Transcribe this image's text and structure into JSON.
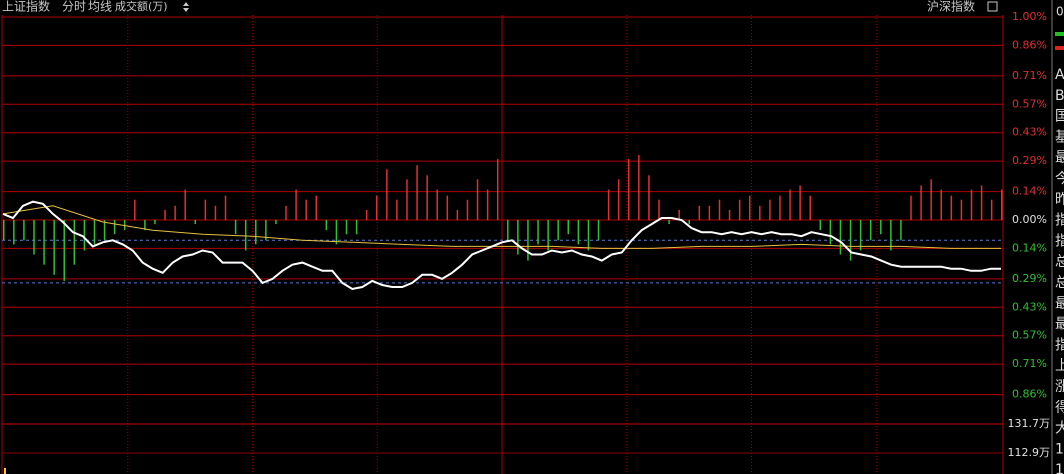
{
  "header": {
    "items": [
      "上证指数",
      "分时",
      "均线",
      "成交额(万)"
    ],
    "right": "沪深指数"
  },
  "side_panel": {
    "top": "0",
    "rows": [
      "A",
      "B",
      "国",
      "基",
      "最",
      "今",
      "昨",
      "指",
      "指",
      "总",
      "总",
      "最",
      "最",
      "指",
      "上",
      "涨",
      "得",
      "大",
      "1",
      "1"
    ]
  },
  "chart_data": {
    "type": "line",
    "ylim": [
      -1.0,
      1.0
    ],
    "yticks": [
      {
        "value": 1.0,
        "label": "1.00%"
      },
      {
        "value": 0.86,
        "label": "0.86%"
      },
      {
        "value": 0.71,
        "label": "0.71%"
      },
      {
        "value": 0.57,
        "label": "0.57%"
      },
      {
        "value": 0.43,
        "label": "0.43%"
      },
      {
        "value": 0.29,
        "label": "0.29%"
      },
      {
        "value": 0.14,
        "label": "0.14%"
      },
      {
        "value": 0,
        "label": "0.00%"
      },
      {
        "value": -0.14,
        "label": "0.14%"
      },
      {
        "value": -0.29,
        "label": "0.29%"
      },
      {
        "value": -0.43,
        "label": "0.43%"
      },
      {
        "value": -0.57,
        "label": "0.57%"
      },
      {
        "value": -0.71,
        "label": "0.71%"
      },
      {
        "value": -0.86,
        "label": "0.86%"
      }
    ],
    "grid": true,
    "ref_lines": [
      -0.1,
      -0.31
    ],
    "ref_color": "#5a78d8",
    "series": [
      {
        "color": "#ffffff",
        "values": [
          0.03,
          0.01,
          0.07,
          0.09,
          0.08,
          0.03,
          -0.01,
          -0.06,
          -0.08,
          -0.13,
          -0.11,
          -0.1,
          -0.12,
          -0.15,
          -0.21,
          -0.24,
          -0.26,
          -0.21,
          -0.18,
          -0.17,
          -0.15,
          -0.16,
          -0.21,
          -0.21,
          -0.21,
          -0.25,
          -0.31,
          -0.29,
          -0.25,
          -0.22,
          -0.21,
          -0.23,
          -0.25,
          -0.25,
          -0.31,
          -0.34,
          -0.33,
          -0.3,
          -0.32,
          -0.33,
          -0.33,
          -0.31,
          -0.27,
          -0.27,
          -0.29,
          -0.26,
          -0.22,
          -0.17,
          -0.15,
          -0.13,
          -0.11,
          -0.1,
          -0.14,
          -0.17,
          -0.17,
          -0.15,
          -0.16,
          -0.15,
          -0.17,
          -0.18,
          -0.2,
          -0.17,
          -0.16,
          -0.1,
          -0.05,
          -0.02,
          0.01,
          0.01,
          0,
          -0.04,
          -0.06,
          -0.06,
          -0.07,
          -0.06,
          -0.07,
          -0.06,
          -0.07,
          -0.06,
          -0.07,
          -0.07,
          -0.08,
          -0.06,
          -0.07,
          -0.08,
          -0.11,
          -0.16,
          -0.17,
          -0.18,
          -0.2,
          -0.22,
          -0.23,
          -0.23,
          -0.23,
          -0.23,
          -0.23,
          -0.24,
          -0.24,
          -0.25,
          -0.25,
          -0.24,
          -0.24
        ]
      },
      {
        "color": "#e8c040",
        "values": [
          0.03,
          0.07,
          -0.01,
          -0.05,
          -0.07,
          -0.08,
          -0.1,
          -0.11,
          -0.12,
          -0.13,
          -0.13,
          -0.13,
          -0.14,
          -0.14,
          -0.13,
          -0.13,
          -0.12,
          -0.13,
          -0.13,
          -0.14,
          -0.14
        ]
      }
    ],
    "bars": {
      "up_color": "#e03030",
      "down_color": "#30c030",
      "values": [
        -0.1,
        -0.12,
        -0.1,
        -0.17,
        -0.22,
        -0.27,
        -0.3,
        -0.22,
        -0.15,
        -0.12,
        -0.1,
        -0.07,
        -0.05,
        0.1,
        -0.05,
        -0.02,
        0.05,
        0.07,
        0.15,
        -0.02,
        0.1,
        0.07,
        0.12,
        -0.07,
        -0.15,
        -0.12,
        -0.1,
        -0.02,
        0.07,
        0.15,
        0.1,
        0.12,
        -0.05,
        -0.12,
        -0.07,
        -0.07,
        0.05,
        0.12,
        0.25,
        0.1,
        0.2,
        0.27,
        0.22,
        0.15,
        0.12,
        0.05,
        0.1,
        0.2,
        0.15,
        0.3,
        -0.1,
        -0.17,
        -0.2,
        -0.12,
        -0.15,
        -0.1,
        -0.07,
        -0.12,
        -0.15,
        -0.1,
        0.15,
        0.2,
        0.3,
        0.32,
        0.22,
        0.1,
        -0.02,
        0.05,
        -0.02,
        0.07,
        0.07,
        0.1,
        0.05,
        0.1,
        0.12,
        0.07,
        0.1,
        0.12,
        0.15,
        0.17,
        0.12,
        -0.05,
        -0.12,
        -0.17,
        -0.2,
        -0.15,
        -0.1,
        -0.07,
        -0.15,
        -0.1,
        0.12,
        0.17,
        0.2,
        0.15,
        0.12,
        0.1,
        0.15,
        0.17,
        0.1,
        0.15
      ]
    },
    "volume": {
      "ylim": [
        99.3,
        131.7
      ],
      "yticks": [
        {
          "value": 131.7,
          "label": "131.7万"
        },
        {
          "value": 112.9,
          "label": "112.9万"
        }
      ],
      "values": [
        103.2
      ],
      "color": "#e8d040"
    }
  }
}
